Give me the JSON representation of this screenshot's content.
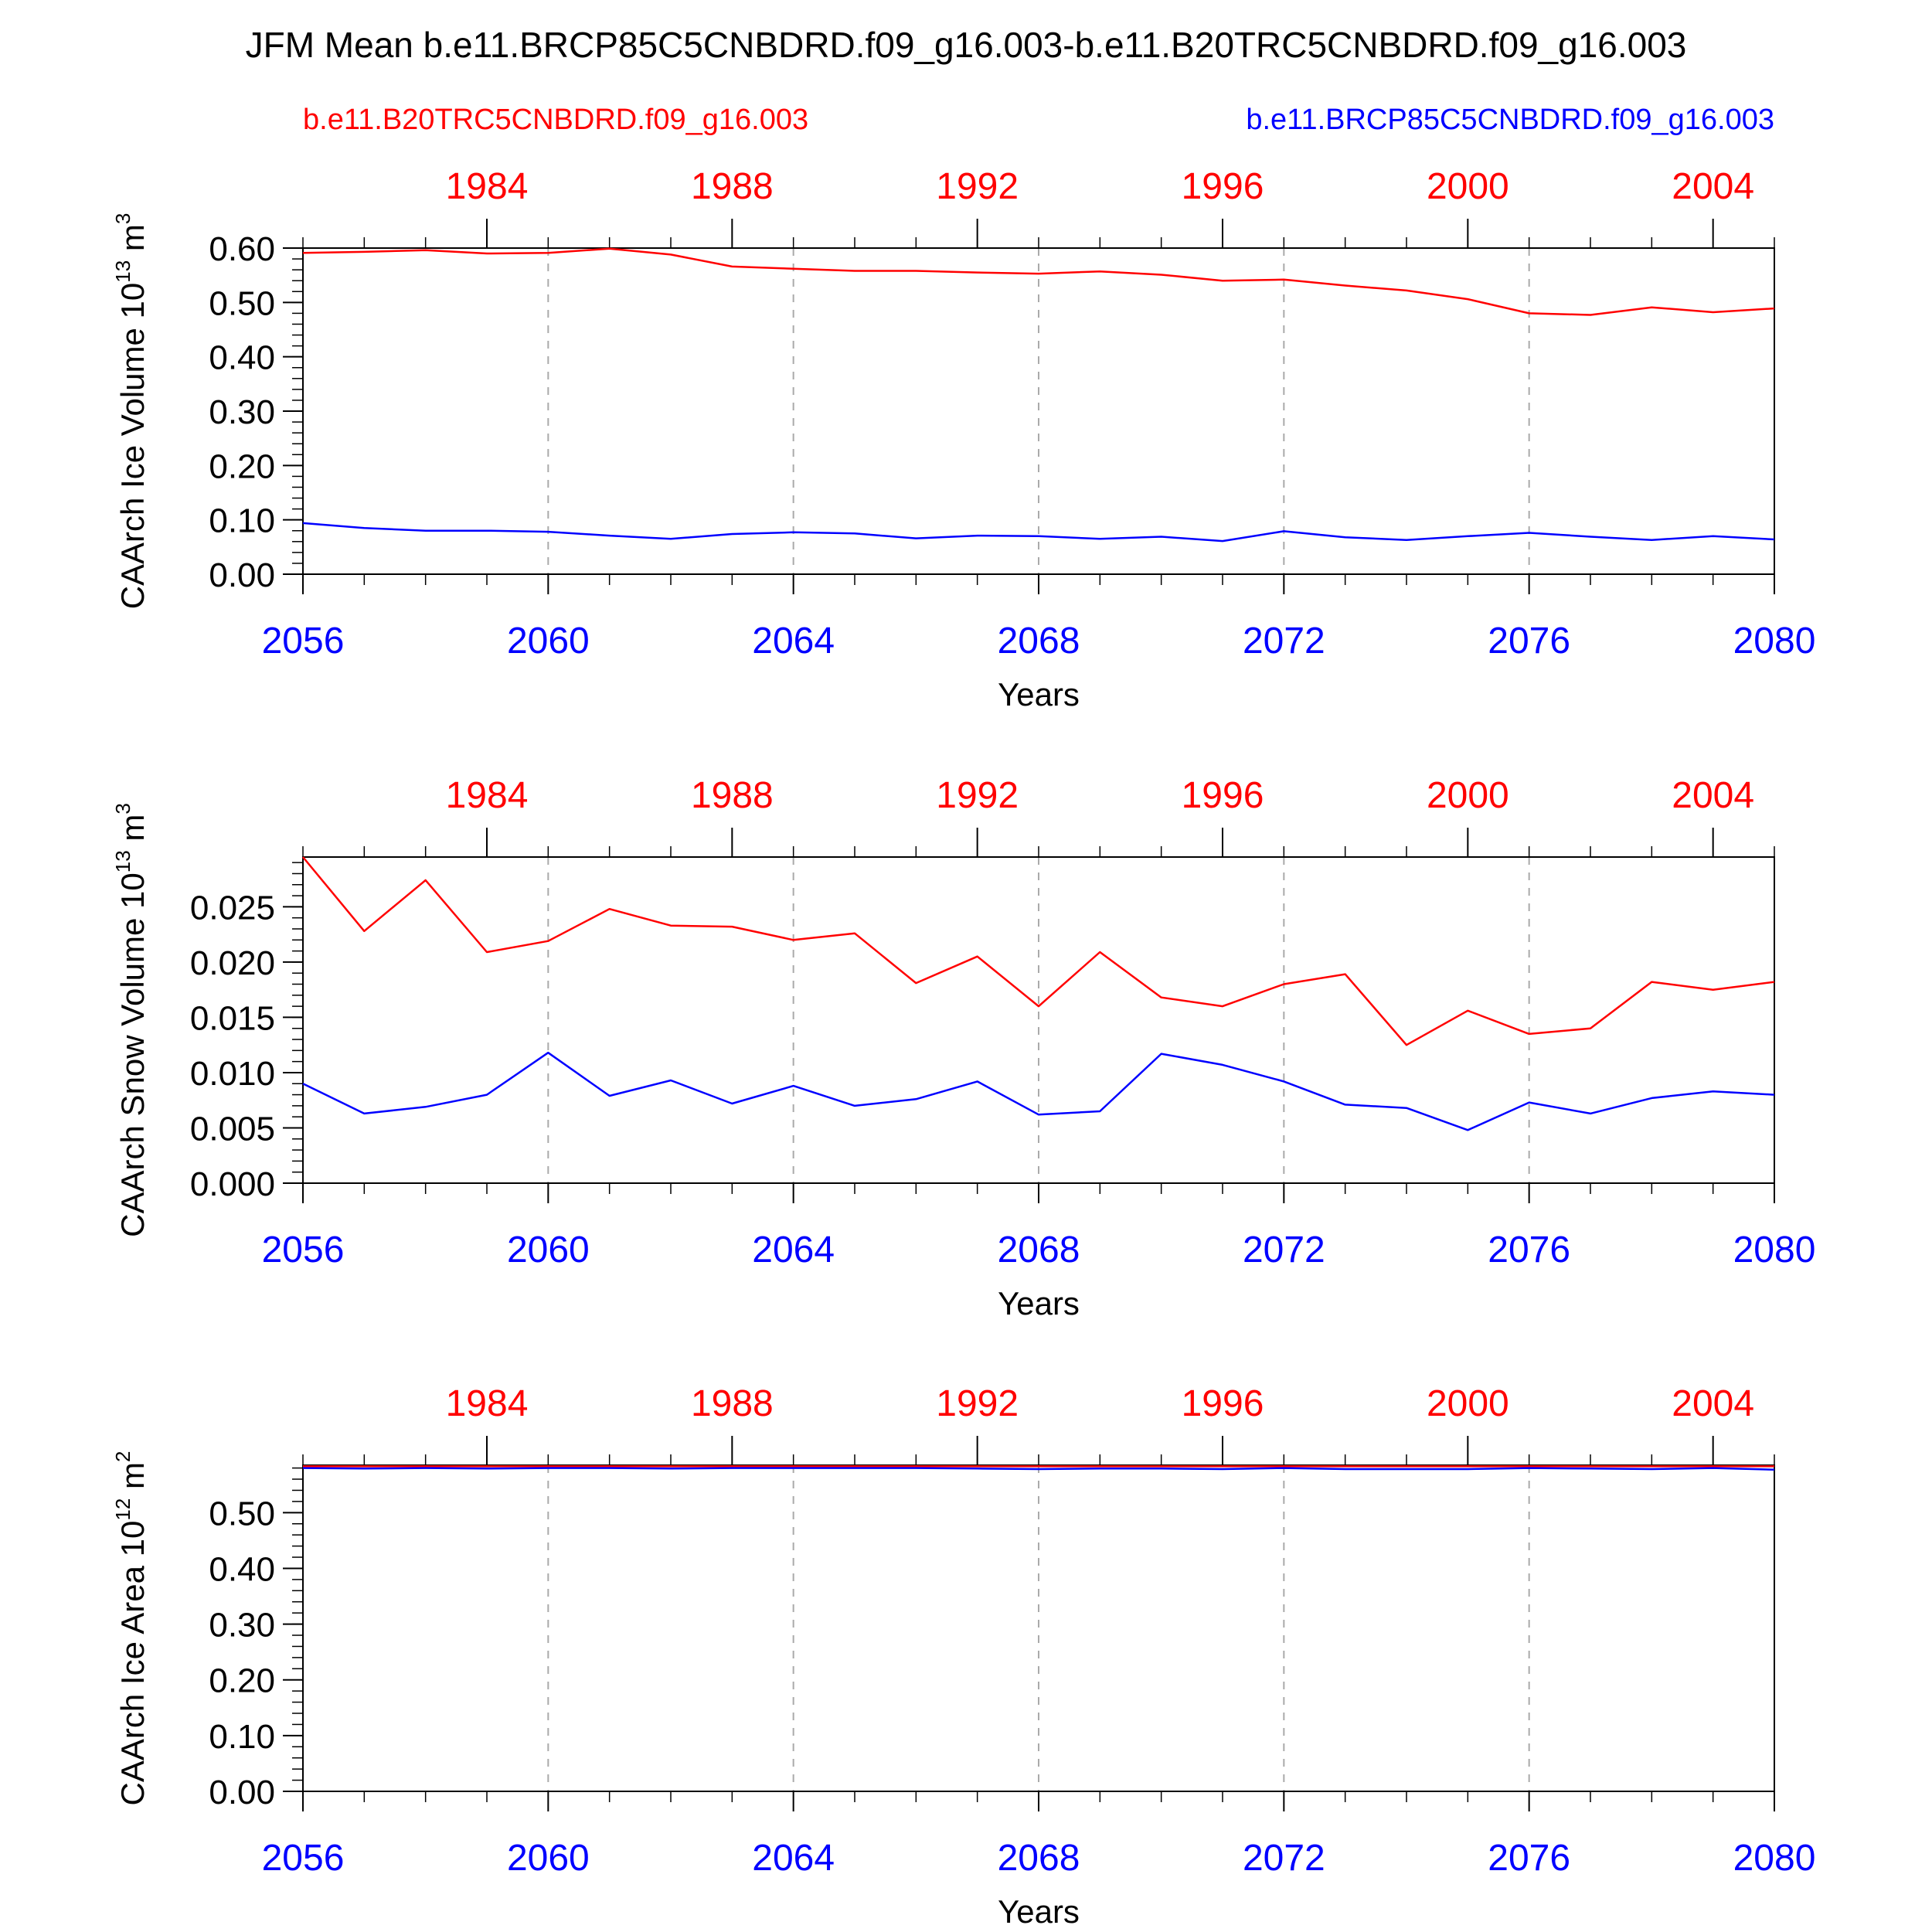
{
  "figure": {
    "title": "JFM Mean b.e11.BRCP85C5CNBDRD.f09_g16.003-b.e11.B20TRC5CNBDRD.f09_g16.003",
    "legend_left": "b.e11.B20TRC5CNBDRD.f09_g16.003",
    "legend_right": "b.e11.BRCP85C5CNBDRD.f09_g16.003"
  },
  "colors": {
    "historical": "#ff0000",
    "future": "#0000ff",
    "axis": "#000000",
    "grid": "#aaaaaa"
  },
  "chart_data": [
    {
      "type": "line",
      "ylabel": "CAArch Ice Volume 10",
      "ylabel_exp": "13",
      "ylabel_unit": " m",
      "ylabel_unit_exp": "3",
      "xlabel": "Years",
      "ylim": [
        0,
        0.6
      ],
      "yticks": [
        "0.00",
        "0.10",
        "0.20",
        "0.30",
        "0.40",
        "0.50",
        "0.60"
      ],
      "yminor": 0.02,
      "grid": "x-dashed",
      "x_bottom": {
        "range": [
          2056,
          2080
        ],
        "ticks": [
          "2056",
          "2060",
          "2064",
          "2068",
          "2072",
          "2076",
          "2080"
        ]
      },
      "x_top": {
        "range": [
          1981,
          2005
        ],
        "ticks": [
          "1984",
          "1988",
          "1992",
          "1996",
          "2000",
          "2004"
        ]
      },
      "series": [
        {
          "name": "b.e11.B20TRC5CNBDRD.f09_g16.003",
          "axis": "top",
          "color": "#ff0000",
          "x": [
            1981,
            1982,
            1983,
            1984,
            1985,
            1986,
            1987,
            1988,
            1989,
            1990,
            1991,
            1992,
            1993,
            1994,
            1995,
            1996,
            1997,
            1998,
            1999,
            2000,
            2001,
            2002,
            2003,
            2004,
            2005
          ],
          "values": [
            0.591,
            0.593,
            0.596,
            0.59,
            0.591,
            0.599,
            0.588,
            0.566,
            0.562,
            0.558,
            0.558,
            0.555,
            0.553,
            0.557,
            0.551,
            0.54,
            0.542,
            0.531,
            0.522,
            0.506,
            0.48,
            0.477,
            0.491,
            0.482,
            0.489
          ]
        },
        {
          "name": "b.e11.BRCP85C5CNBDRD.f09_g16.003",
          "axis": "bottom",
          "color": "#0000ff",
          "x": [
            2056,
            2057,
            2058,
            2059,
            2060,
            2061,
            2062,
            2063,
            2064,
            2065,
            2066,
            2067,
            2068,
            2069,
            2070,
            2071,
            2072,
            2073,
            2074,
            2075,
            2076,
            2077,
            2078,
            2079,
            2080
          ],
          "values": [
            0.094,
            0.085,
            0.08,
            0.08,
            0.078,
            0.071,
            0.065,
            0.074,
            0.077,
            0.075,
            0.066,
            0.071,
            0.07,
            0.065,
            0.069,
            0.061,
            0.079,
            0.068,
            0.063,
            0.07,
            0.076,
            0.069,
            0.063,
            0.07,
            0.064
          ]
        }
      ]
    },
    {
      "type": "line",
      "ylabel": "CAArch Snow Volume 10",
      "ylabel_exp": "13",
      "ylabel_unit": " m",
      "ylabel_unit_exp": "3",
      "xlabel": "Years",
      "ylim": [
        0,
        0.0295
      ],
      "yticks": [
        "0.000",
        "0.005",
        "0.010",
        "0.015",
        "0.020",
        "0.025"
      ],
      "yminor": 0.001,
      "grid": "x-dashed",
      "x_bottom": {
        "range": [
          2056,
          2080
        ],
        "ticks": [
          "2056",
          "2060",
          "2064",
          "2068",
          "2072",
          "2076",
          "2080"
        ]
      },
      "x_top": {
        "range": [
          1981,
          2005
        ],
        "ticks": [
          "1984",
          "1988",
          "1992",
          "1996",
          "2000",
          "2004"
        ]
      },
      "series": [
        {
          "name": "b.e11.B20TRC5CNBDRD.f09_g16.003",
          "axis": "top",
          "color": "#ff0000",
          "x": [
            1981,
            1982,
            1983,
            1984,
            1985,
            1986,
            1987,
            1988,
            1989,
            1990,
            1991,
            1992,
            1993,
            1994,
            1995,
            1996,
            1997,
            1998,
            1999,
            2000,
            2001,
            2002,
            2003,
            2004,
            2005
          ],
          "values": [
            0.0295,
            0.0228,
            0.0274,
            0.0209,
            0.0219,
            0.0248,
            0.0233,
            0.0232,
            0.022,
            0.0226,
            0.0181,
            0.0205,
            0.016,
            0.0209,
            0.0168,
            0.016,
            0.018,
            0.0189,
            0.0125,
            0.0156,
            0.0135,
            0.014,
            0.0182,
            0.0175,
            0.0182
          ]
        },
        {
          "name": "b.e11.BRCP85C5CNBDRD.f09_g16.003",
          "axis": "bottom",
          "color": "#0000ff",
          "x": [
            2056,
            2057,
            2058,
            2059,
            2060,
            2061,
            2062,
            2063,
            2064,
            2065,
            2066,
            2067,
            2068,
            2069,
            2070,
            2071,
            2072,
            2073,
            2074,
            2075,
            2076,
            2077,
            2078,
            2079,
            2080
          ],
          "values": [
            0.009,
            0.0063,
            0.0069,
            0.008,
            0.0118,
            0.0079,
            0.0093,
            0.0072,
            0.0088,
            0.007,
            0.0076,
            0.0092,
            0.0062,
            0.0065,
            0.0117,
            0.0107,
            0.0092,
            0.0071,
            0.0068,
            0.0048,
            0.0073,
            0.0063,
            0.0077,
            0.0083,
            0.008
          ]
        }
      ]
    },
    {
      "type": "line",
      "ylabel": "CAArch Ice Area 10",
      "ylabel_exp": "12",
      "ylabel_unit": " m",
      "ylabel_unit_exp": "2",
      "xlabel": "Years",
      "ylim": [
        0,
        0.585
      ],
      "yticks": [
        "0.00",
        "0.10",
        "0.20",
        "0.30",
        "0.40",
        "0.50"
      ],
      "yminor": 0.02,
      "grid": "x-dashed",
      "x_bottom": {
        "range": [
          2056,
          2080
        ],
        "ticks": [
          "2056",
          "2060",
          "2064",
          "2068",
          "2072",
          "2076",
          "2080"
        ]
      },
      "x_top": {
        "range": [
          1981,
          2005
        ],
        "ticks": [
          "1984",
          "1988",
          "1992",
          "1996",
          "2000",
          "2004"
        ]
      },
      "series": [
        {
          "name": "b.e11.B20TRC5CNBDRD.f09_g16.003",
          "axis": "top",
          "color": "#ff0000",
          "x": [
            1981,
            1982,
            1983,
            1984,
            1985,
            1986,
            1987,
            1988,
            1989,
            1990,
            1991,
            1992,
            1993,
            1994,
            1995,
            1996,
            1997,
            1998,
            1999,
            2000,
            2001,
            2002,
            2003,
            2004,
            2005
          ],
          "values": [
            0.583,
            0.583,
            0.583,
            0.583,
            0.583,
            0.583,
            0.583,
            0.583,
            0.583,
            0.583,
            0.583,
            0.583,
            0.583,
            0.583,
            0.583,
            0.583,
            0.583,
            0.583,
            0.583,
            0.583,
            0.583,
            0.583,
            0.583,
            0.583,
            0.583
          ]
        },
        {
          "name": "b.e11.BRCP85C5CNBDRD.f09_g16.003",
          "axis": "bottom",
          "color": "#0000ff",
          "x": [
            2056,
            2057,
            2058,
            2059,
            2060,
            2061,
            2062,
            2063,
            2064,
            2065,
            2066,
            2067,
            2068,
            2069,
            2070,
            2071,
            2072,
            2073,
            2074,
            2075,
            2076,
            2077,
            2078,
            2079,
            2080
          ],
          "values": [
            0.58,
            0.579,
            0.58,
            0.579,
            0.58,
            0.58,
            0.579,
            0.58,
            0.58,
            0.58,
            0.58,
            0.579,
            0.578,
            0.579,
            0.579,
            0.578,
            0.58,
            0.578,
            0.578,
            0.578,
            0.58,
            0.579,
            0.578,
            0.58,
            0.577
          ]
        }
      ]
    }
  ]
}
